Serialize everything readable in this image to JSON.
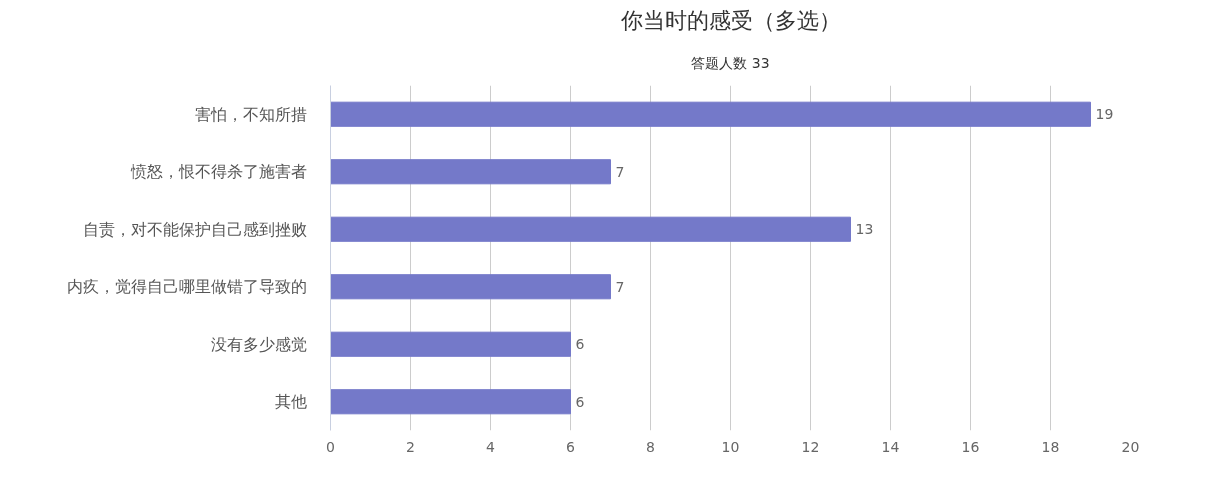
{
  "chart_data": {
    "type": "bar",
    "orientation": "horizontal",
    "title": "你当时的感受（多选）",
    "subtitle": "答题人数 33",
    "categories": [
      "害怕，不知所措",
      "愤怒，恨不得杀了施害者",
      "自责，对不能保护自己感到挫败",
      "内疚，觉得自己哪里做错了导致的",
      "没有多少感觉",
      "其他"
    ],
    "values": [
      19,
      7,
      13,
      7,
      6,
      6
    ],
    "color": "#7479c9",
    "xlim": [
      0,
      20
    ],
    "xticks": [
      0,
      2,
      4,
      6,
      8,
      10,
      12,
      14,
      16,
      18,
      20
    ],
    "grid": "x",
    "data_labels": true
  }
}
